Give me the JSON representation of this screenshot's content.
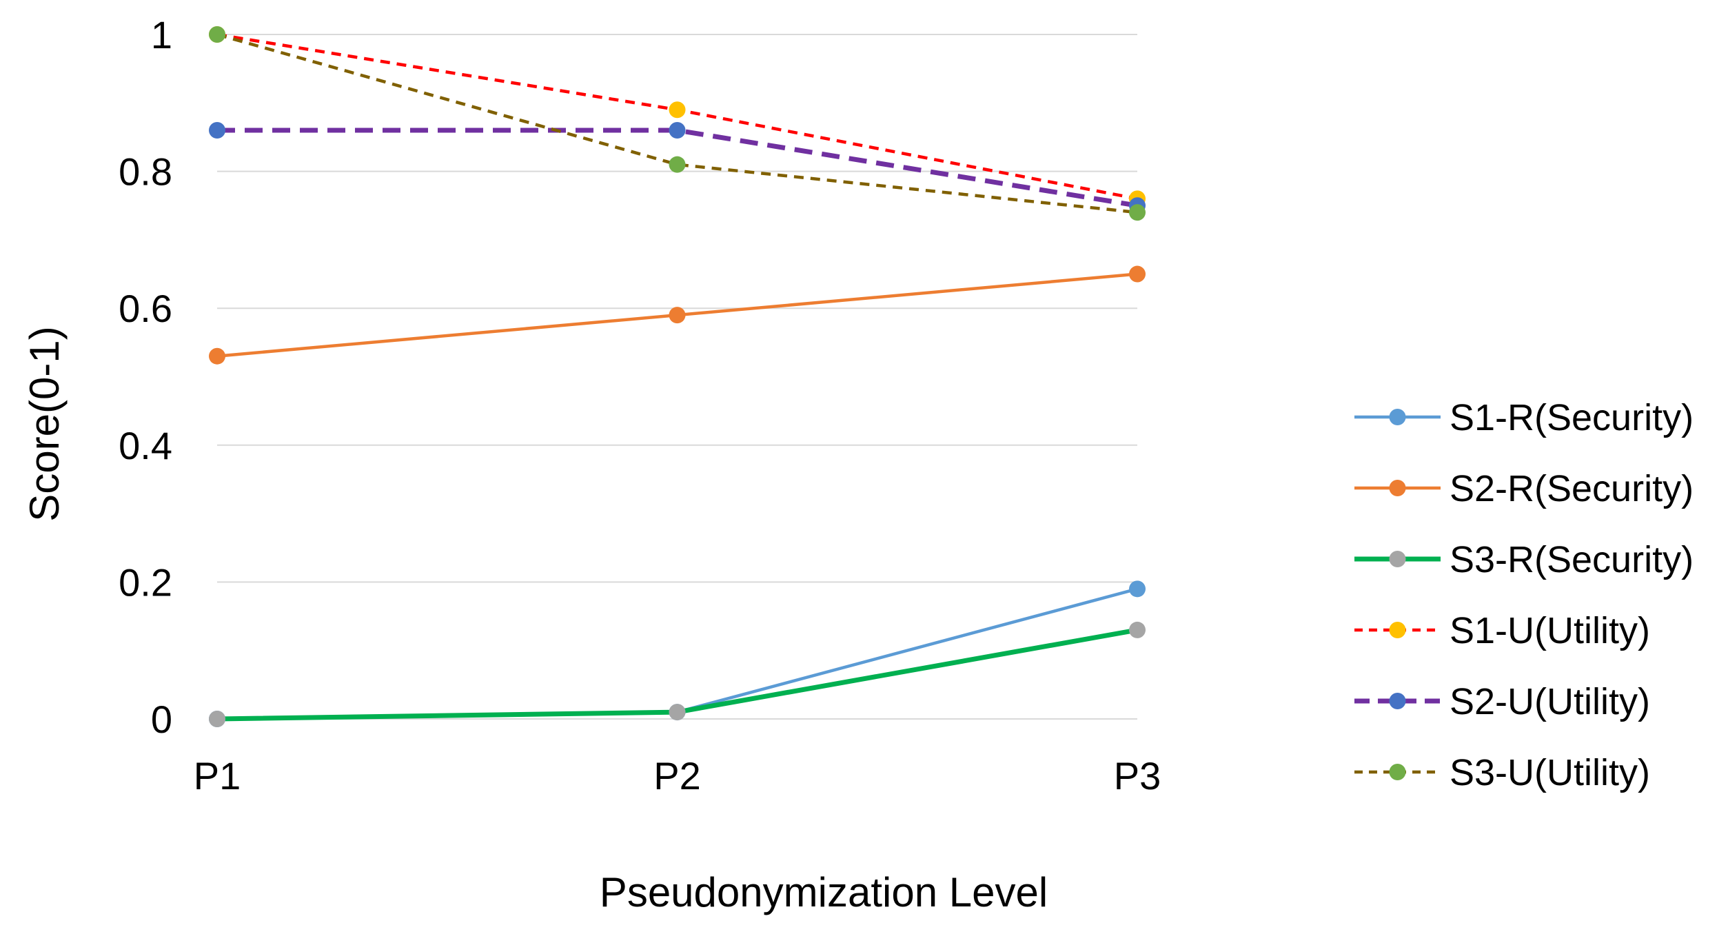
{
  "chart_data": {
    "type": "line",
    "title": "",
    "xlabel": "Pseudonymization Level",
    "ylabel": "Score(0-1)",
    "categories": [
      "P1",
      "P2",
      "P3"
    ],
    "ylim": [
      0,
      1
    ],
    "yticks": [
      0,
      0.2,
      0.4,
      0.6,
      0.8,
      1
    ],
    "ytick_labels": [
      "0",
      "0.2",
      "0.4",
      "0.6",
      "0.8",
      "1"
    ],
    "grid": true,
    "legend_position": "right",
    "series": [
      {
        "name": "S1-R(Security)",
        "values": [
          0.0,
          0.01,
          0.19
        ],
        "color": "#5b9bd5",
        "marker_color": "#5b9bd5",
        "style": "solid",
        "weight": "normal"
      },
      {
        "name": "S2-R(Security)",
        "values": [
          0.53,
          0.59,
          0.65
        ],
        "color": "#ed7d31",
        "marker_color": "#ed7d31",
        "style": "solid",
        "weight": "normal"
      },
      {
        "name": "S3-R(Security)",
        "values": [
          0.0,
          0.01,
          0.13
        ],
        "color": "#00b050",
        "marker_color": "#a5a5a5",
        "style": "solid",
        "weight": "bold"
      },
      {
        "name": "S1-U(Utility)",
        "values": [
          1.0,
          0.89,
          0.76
        ],
        "color": "#ff0000",
        "marker_color": "#ffc000",
        "style": "dashed",
        "weight": "normal"
      },
      {
        "name": "S2-U(Utility)",
        "values": [
          0.86,
          0.86,
          0.75
        ],
        "color": "#7030a0",
        "marker_color": "#4472c4",
        "style": "dashed",
        "weight": "bold"
      },
      {
        "name": "S3-U(Utility)",
        "values": [
          1.0,
          0.81,
          0.74
        ],
        "color": "#806000",
        "marker_color": "#70ad47",
        "style": "dashed",
        "weight": "normal"
      }
    ]
  }
}
